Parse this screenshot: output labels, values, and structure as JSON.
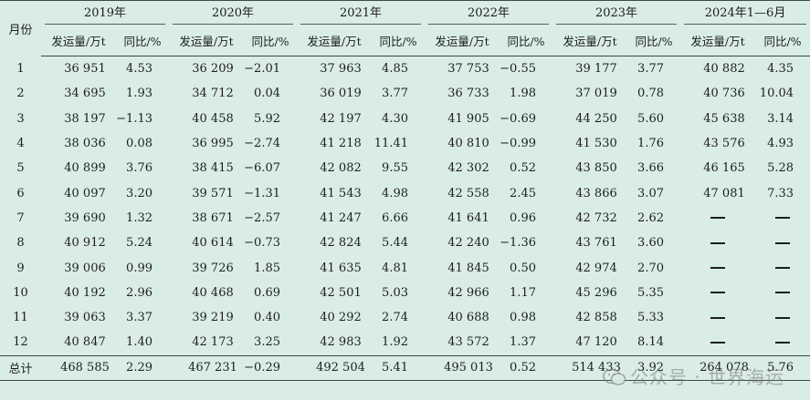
{
  "header": {
    "month_label": "月份",
    "years": [
      "2019年",
      "2020年",
      "2021年",
      "2022年",
      "2023年",
      "2024年1—6月"
    ],
    "volume_label": "发运量/万t",
    "yoy_label": "同比/%"
  },
  "rows": [
    {
      "month": "1",
      "cells": [
        "36 951",
        "4.53",
        "36 209",
        "−2.01",
        "37 963",
        "4.85",
        "37 753",
        "−0.55",
        "39 177",
        "3.77",
        "40 882",
        "4.35"
      ]
    },
    {
      "month": "2",
      "cells": [
        "34 695",
        "1.93",
        "34 712",
        "0.04",
        "36 019",
        "3.77",
        "36 733",
        "1.98",
        "37 019",
        "0.78",
        "40 736",
        "10.04"
      ]
    },
    {
      "month": "3",
      "cells": [
        "38 197",
        "−1.13",
        "40 458",
        "5.92",
        "42 197",
        "4.30",
        "41 905",
        "−0.69",
        "44 250",
        "5.60",
        "45 638",
        "3.14"
      ]
    },
    {
      "month": "4",
      "cells": [
        "38 036",
        "0.08",
        "36 995",
        "−2.74",
        "41 218",
        "11.41",
        "40 810",
        "−0.99",
        "41 530",
        "1.76",
        "43 576",
        "4.93"
      ]
    },
    {
      "month": "5",
      "cells": [
        "40 899",
        "3.76",
        "38 415",
        "−6.07",
        "42 082",
        "9.55",
        "42 302",
        "0.52",
        "43 850",
        "3.66",
        "46 165",
        "5.28"
      ]
    },
    {
      "month": "6",
      "cells": [
        "40 097",
        "3.20",
        "39 571",
        "−1.31",
        "41 543",
        "4.98",
        "42 558",
        "2.45",
        "43 866",
        "3.07",
        "47 081",
        "7.33"
      ]
    },
    {
      "month": "7",
      "cells": [
        "39 690",
        "1.32",
        "38 671",
        "−2.57",
        "41 247",
        "6.66",
        "41 641",
        "0.96",
        "42 732",
        "2.62",
        "—",
        "—"
      ]
    },
    {
      "month": "8",
      "cells": [
        "40 912",
        "5.24",
        "40 614",
        "−0.73",
        "42 824",
        "5.44",
        "42 240",
        "−1.36",
        "43 761",
        "3.60",
        "—",
        "—"
      ]
    },
    {
      "month": "9",
      "cells": [
        "39 006",
        "0.99",
        "39 726",
        "1.85",
        "41 635",
        "4.81",
        "41 845",
        "0.50",
        "42 974",
        "2.70",
        "—",
        "—"
      ]
    },
    {
      "month": "10",
      "cells": [
        "40 192",
        "2.96",
        "40 468",
        "0.69",
        "42 501",
        "5.03",
        "42 966",
        "1.17",
        "45 296",
        "5.35",
        "—",
        "—"
      ]
    },
    {
      "month": "11",
      "cells": [
        "39 063",
        "3.37",
        "39 219",
        "0.40",
        "40 292",
        "2.74",
        "40 688",
        "0.98",
        "42 858",
        "5.33",
        "—",
        "—"
      ]
    },
    {
      "month": "12",
      "cells": [
        "40 847",
        "1.40",
        "42 173",
        "3.25",
        "42 983",
        "1.92",
        "43 572",
        "1.37",
        "47 120",
        "8.14",
        "—",
        "—"
      ]
    }
  ],
  "total": {
    "label": "总计",
    "cells": [
      "468 585",
      "2.29",
      "467 231",
      "−0.29",
      "492 504",
      "5.41",
      "495 013",
      "0.52",
      "514 433",
      "3.92",
      "264 078",
      "5.76"
    ]
  },
  "watermark": "公众号 · 世界海运"
}
